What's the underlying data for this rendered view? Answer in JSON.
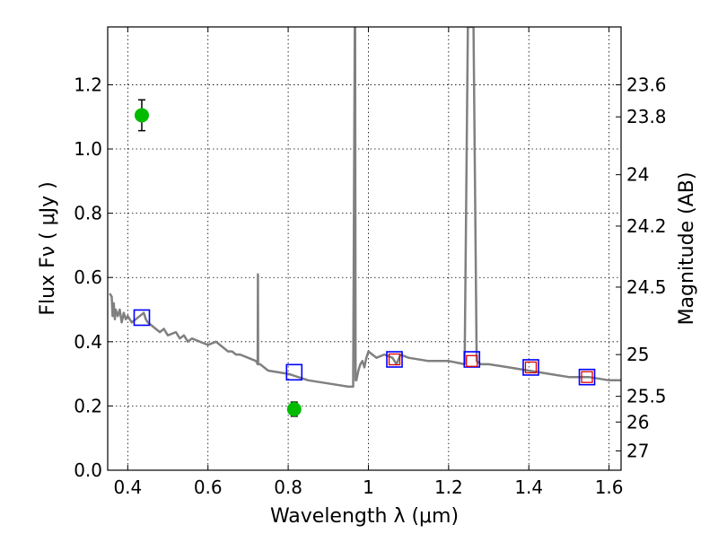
{
  "chart_data": {
    "type": "scatter",
    "xlabel": "Wavelength  λ (μm)",
    "ylabel": "Flux  Fν  ( μJy )",
    "ylabel_right": "Magnitude (AB)",
    "xlim": [
      0.35,
      1.63
    ],
    "ylim": [
      0.0,
      1.38
    ],
    "x_ticks": [
      0.4,
      0.6,
      0.8,
      1.0,
      1.2,
      1.4,
      1.6
    ],
    "x_tick_labels": [
      "0.4",
      "0.6",
      "0.8",
      "1",
      "1.2",
      "1.4",
      "1.6"
    ],
    "y_ticks": [
      0.0,
      0.2,
      0.4,
      0.6,
      0.8,
      1.0,
      1.2
    ],
    "y_tick_labels": [
      "0.0",
      "0.2",
      "0.4",
      "0.6",
      "0.8",
      "1.0",
      "1.2"
    ],
    "right_ticks": [
      {
        "flux": 1.2,
        "label": "23.6"
      },
      {
        "flux": 1.1,
        "label": "23.8"
      },
      {
        "flux": 0.92,
        "label": "24"
      },
      {
        "flux": 0.76,
        "label": "24.2"
      },
      {
        "flux": 0.57,
        "label": "24.5"
      },
      {
        "flux": 0.36,
        "label": "25"
      },
      {
        "flux": 0.23,
        "label": "25.5"
      },
      {
        "flux": 0.15,
        "label": "26"
      },
      {
        "flux": 0.06,
        "label": "27"
      }
    ],
    "grid": true,
    "colors": {
      "spectrum": "#808080",
      "photometry": "#00bb00",
      "model_squares": "#0000ff",
      "observed_squares": "#dd0000"
    },
    "series": [
      {
        "kind": "spectrum",
        "x": [
          0.355,
          0.36,
          0.362,
          0.365,
          0.368,
          0.37,
          0.375,
          0.38,
          0.385,
          0.39,
          0.395,
          0.4,
          0.41,
          0.42,
          0.43,
          0.44,
          0.445,
          0.45,
          0.46,
          0.47,
          0.48,
          0.49,
          0.5,
          0.52,
          0.53,
          0.54,
          0.55,
          0.56,
          0.58,
          0.6,
          0.62,
          0.64,
          0.65,
          0.66,
          0.67,
          0.68,
          0.7,
          0.72,
          0.724,
          0.7245,
          0.725,
          0.726,
          0.73,
          0.75,
          0.8,
          0.85,
          0.9,
          0.95,
          0.962,
          0.966,
          0.967,
          0.968,
          0.97,
          0.975,
          0.98,
          0.985,
          0.99,
          0.995,
          1.0,
          1.01,
          1.02,
          1.04,
          1.06,
          1.07,
          1.08,
          1.1,
          1.15,
          1.2,
          1.24,
          1.248,
          1.25,
          1.262,
          1.27,
          1.28,
          1.3,
          1.35,
          1.4,
          1.45,
          1.5,
          1.55,
          1.6,
          1.63
        ],
        "y": [
          0.55,
          0.54,
          0.48,
          0.52,
          0.47,
          0.5,
          0.48,
          0.5,
          0.46,
          0.49,
          0.47,
          0.48,
          0.46,
          0.47,
          0.48,
          0.49,
          0.47,
          0.46,
          0.45,
          0.44,
          0.43,
          0.44,
          0.42,
          0.43,
          0.41,
          0.42,
          0.4,
          0.41,
          0.4,
          0.39,
          0.4,
          0.38,
          0.37,
          0.37,
          0.36,
          0.36,
          0.35,
          0.34,
          0.33,
          0.61,
          0.33,
          0.33,
          0.33,
          0.31,
          0.3,
          0.28,
          0.27,
          0.26,
          0.26,
          1.38,
          1.38,
          0.28,
          0.28,
          0.31,
          0.33,
          0.34,
          0.32,
          0.35,
          0.37,
          0.36,
          0.35,
          0.36,
          0.35,
          0.33,
          0.36,
          0.35,
          0.34,
          0.34,
          0.33,
          1.38,
          1.38,
          1.38,
          0.34,
          0.33,
          0.33,
          0.32,
          0.31,
          0.3,
          0.29,
          0.29,
          0.28,
          0.28
        ]
      },
      {
        "kind": "photometry",
        "points": [
          {
            "x": 0.435,
            "y": 1.105,
            "err": 0.048
          },
          {
            "x": 0.815,
            "y": 0.19,
            "err": 0.022
          }
        ]
      },
      {
        "kind": "model_squares",
        "points": [
          {
            "x": 0.435,
            "y": 0.475
          },
          {
            "x": 0.815,
            "y": 0.305
          },
          {
            "x": 1.065,
            "y": 0.345
          },
          {
            "x": 1.258,
            "y": 0.345
          },
          {
            "x": 1.405,
            "y": 0.32
          },
          {
            "x": 1.545,
            "y": 0.29
          }
        ]
      },
      {
        "kind": "observed_squares",
        "points": [
          {
            "x": 1.065,
            "y": 0.345
          },
          {
            "x": 1.258,
            "y": 0.34
          },
          {
            "x": 1.405,
            "y": 0.32
          },
          {
            "x": 1.545,
            "y": 0.29
          }
        ]
      }
    ]
  }
}
